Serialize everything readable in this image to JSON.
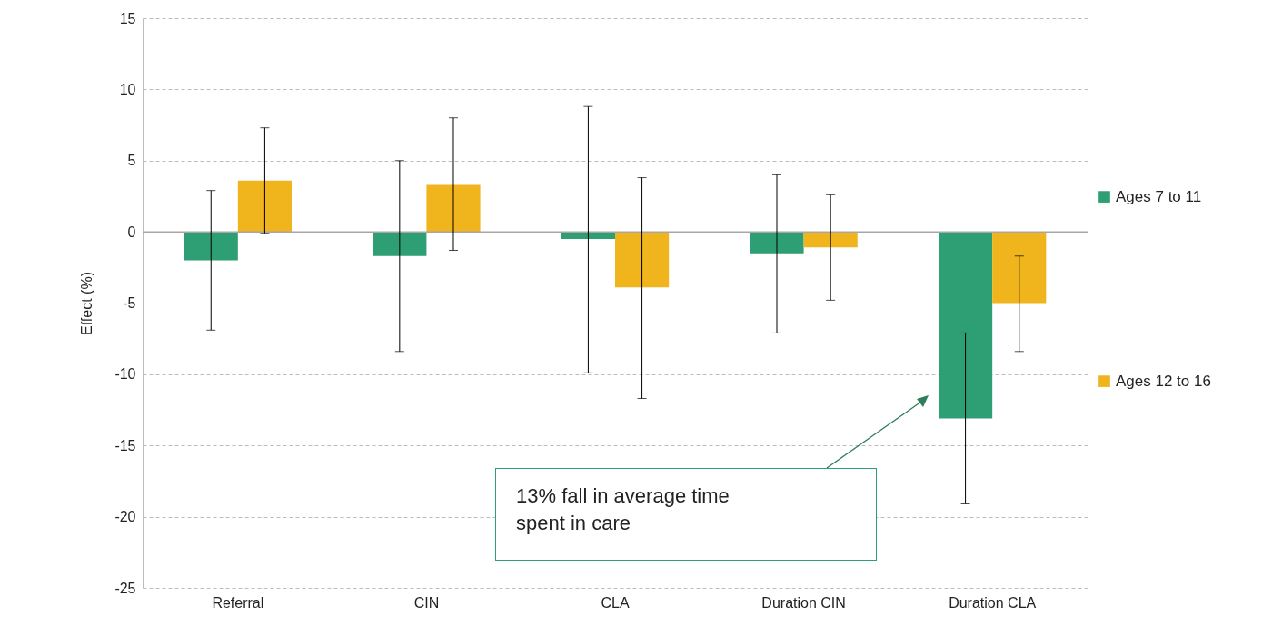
{
  "chart_data": {
    "type": "bar",
    "ylabel": "Effect (%)",
    "categories": [
      "Referral",
      "CIN",
      "CLA",
      "Duration CIN",
      "Duration CLA"
    ],
    "series": [
      {
        "name": "Ages 7 to 11",
        "color": "#2e9e74",
        "values": [
          -2.0,
          -1.7,
          -0.5,
          -1.5,
          -13.1
        ],
        "errors": [
          [
            -6.9,
            2.9
          ],
          [
            -8.4,
            5.0
          ],
          [
            -9.9,
            8.8
          ],
          [
            -7.1,
            4.0
          ],
          [
            -19.1,
            -7.1
          ]
        ]
      },
      {
        "name": "Ages 12 to 16",
        "color": "#f0b41c",
        "values": [
          3.6,
          3.3,
          -3.9,
          -1.1,
          -5.0
        ],
        "errors": [
          [
            -0.1,
            7.3
          ],
          [
            -1.3,
            8.0
          ],
          [
            -11.7,
            3.8
          ],
          [
            -4.8,
            2.6
          ],
          [
            -8.4,
            -1.7
          ]
        ]
      }
    ],
    "ylim": [
      -25,
      15
    ],
    "yticks": [
      -25,
      -20,
      -15,
      -10,
      -5,
      0,
      5,
      10,
      15
    ],
    "grid": "y",
    "legend": "right",
    "annotations": [
      "13% fall in average time spent in care"
    ]
  }
}
